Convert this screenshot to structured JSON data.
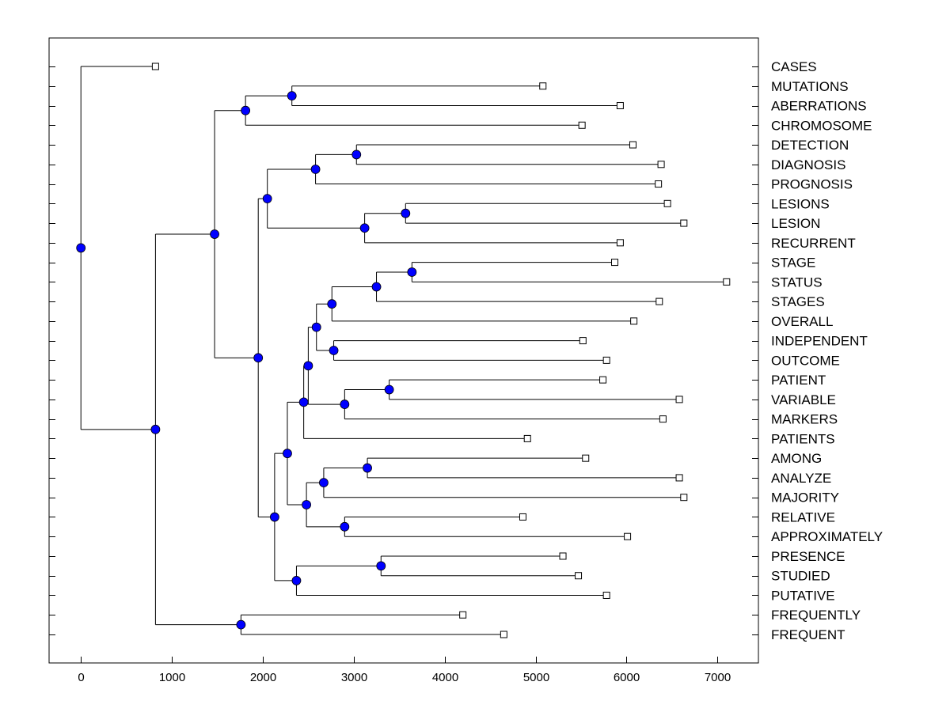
{
  "chart_data": {
    "type": "dendrogram",
    "title": "",
    "xlabel": "",
    "ylabel": "",
    "xlim": [
      -350,
      7450
    ],
    "xticks": [
      0,
      1000,
      2000,
      3000,
      4000,
      5000,
      6000,
      7000
    ],
    "xtick_labels": [
      "0",
      "1000",
      "2000",
      "3000",
      "4000",
      "5000",
      "6000",
      "7000"
    ],
    "grid": false,
    "node_color": "#0000ff",
    "leaf_marker": "open-square",
    "leaves": [
      {
        "label": "CASES",
        "x": 820
      },
      {
        "label": "MUTATIONS",
        "x": 5080
      },
      {
        "label": "ABERRATIONS",
        "x": 5930
      },
      {
        "label": "CHROMOSOME",
        "x": 5510
      },
      {
        "label": "DETECTION",
        "x": 6070
      },
      {
        "label": "DIAGNOSIS",
        "x": 6380
      },
      {
        "label": "PROGNOSIS",
        "x": 6350
      },
      {
        "label": "LESIONS",
        "x": 6450
      },
      {
        "label": "LESION",
        "x": 6630
      },
      {
        "label": "RECURRENT",
        "x": 5930
      },
      {
        "label": "STAGE",
        "x": 5870
      },
      {
        "label": "STATUS",
        "x": 7100
      },
      {
        "label": "STAGES",
        "x": 6360
      },
      {
        "label": "OVERALL",
        "x": 6080
      },
      {
        "label": "INDEPENDENT",
        "x": 5520
      },
      {
        "label": "OUTCOME",
        "x": 5780
      },
      {
        "label": "PATIENT",
        "x": 5740
      },
      {
        "label": "VARIABLE",
        "x": 6580
      },
      {
        "label": "MARKERS",
        "x": 6400
      },
      {
        "label": "PATIENTS",
        "x": 4910
      },
      {
        "label": "AMONG",
        "x": 5550
      },
      {
        "label": "ANALYZE",
        "x": 6580
      },
      {
        "label": "MAJORITY",
        "x": 6630
      },
      {
        "label": "RELATIVE",
        "x": 4860
      },
      {
        "label": "APPROXIMATELY",
        "x": 6010
      },
      {
        "label": "PRESENCE",
        "x": 5300
      },
      {
        "label": "STUDIED",
        "x": 5470
      },
      {
        "label": "PUTATIVE",
        "x": 5780
      },
      {
        "label": "FREQUENTLY",
        "x": 4200
      },
      {
        "label": "FREQUENT",
        "x": 4650
      }
    ],
    "merges": [
      {
        "id": "n1",
        "x": 2320,
        "children": [
          "MUTATIONS",
          "ABERRATIONS"
        ]
      },
      {
        "id": "n2",
        "x": 1810,
        "children": [
          "n1",
          "CHROMOSOME"
        ]
      },
      {
        "id": "n3",
        "x": 3030,
        "children": [
          "DETECTION",
          "DIAGNOSIS"
        ]
      },
      {
        "id": "n4",
        "x": 2580,
        "children": [
          "n3",
          "PROGNOSIS"
        ]
      },
      {
        "id": "n5",
        "x": 3570,
        "children": [
          "LESIONS",
          "LESION"
        ]
      },
      {
        "id": "n6",
        "x": 3120,
        "children": [
          "n5",
          "RECURRENT"
        ]
      },
      {
        "id": "n7",
        "x": 2050,
        "children": [
          "n4",
          "n6"
        ]
      },
      {
        "id": "n8",
        "x": 3640,
        "children": [
          "STAGE",
          "STATUS"
        ]
      },
      {
        "id": "n9",
        "x": 3250,
        "children": [
          "n8",
          "STAGES"
        ]
      },
      {
        "id": "n10",
        "x": 2760,
        "children": [
          "n9",
          "OVERALL"
        ]
      },
      {
        "id": "n11",
        "x": 2780,
        "children": [
          "INDEPENDENT",
          "OUTCOME"
        ]
      },
      {
        "id": "n12",
        "x": 2590,
        "children": [
          "n10",
          "n11"
        ]
      },
      {
        "id": "n13",
        "x": 3390,
        "children": [
          "PATIENT",
          "VARIABLE"
        ]
      },
      {
        "id": "n14",
        "x": 2900,
        "children": [
          "n13",
          "MARKERS"
        ]
      },
      {
        "id": "n15",
        "x": 2500,
        "children": [
          "n12",
          "n14"
        ]
      },
      {
        "id": "n16",
        "x": 2450,
        "children": [
          "n15",
          "PATIENTS"
        ]
      },
      {
        "id": "n17",
        "x": 3150,
        "children": [
          "AMONG",
          "ANALYZE"
        ]
      },
      {
        "id": "n18",
        "x": 2670,
        "children": [
          "n17",
          "MAJORITY"
        ]
      },
      {
        "id": "n19",
        "x": 2900,
        "children": [
          "RELATIVE",
          "APPROXIMATELY"
        ]
      },
      {
        "id": "n20",
        "x": 2480,
        "children": [
          "n18",
          "n19"
        ]
      },
      {
        "id": "n21",
        "x": 2270,
        "children": [
          "n16",
          "n20"
        ]
      },
      {
        "id": "n22",
        "x": 3300,
        "children": [
          "PRESENCE",
          "STUDIED"
        ]
      },
      {
        "id": "n23",
        "x": 2370,
        "children": [
          "n22",
          "PUTATIVE"
        ]
      },
      {
        "id": "n24",
        "x": 2130,
        "children": [
          "n21",
          "n23"
        ]
      },
      {
        "id": "n25",
        "x": 1950,
        "children": [
          "n7",
          "n24"
        ]
      },
      {
        "id": "n26",
        "x": 1470,
        "children": [
          "n2",
          "n25"
        ]
      },
      {
        "id": "n27",
        "x": 1760,
        "children": [
          "FREQUENTLY",
          "FREQUENT"
        ]
      },
      {
        "id": "n28",
        "x": 820,
        "children": [
          "n26",
          "n27"
        ]
      },
      {
        "id": "n29",
        "x": 0,
        "children": [
          "CASES",
          "n28"
        ]
      }
    ]
  }
}
